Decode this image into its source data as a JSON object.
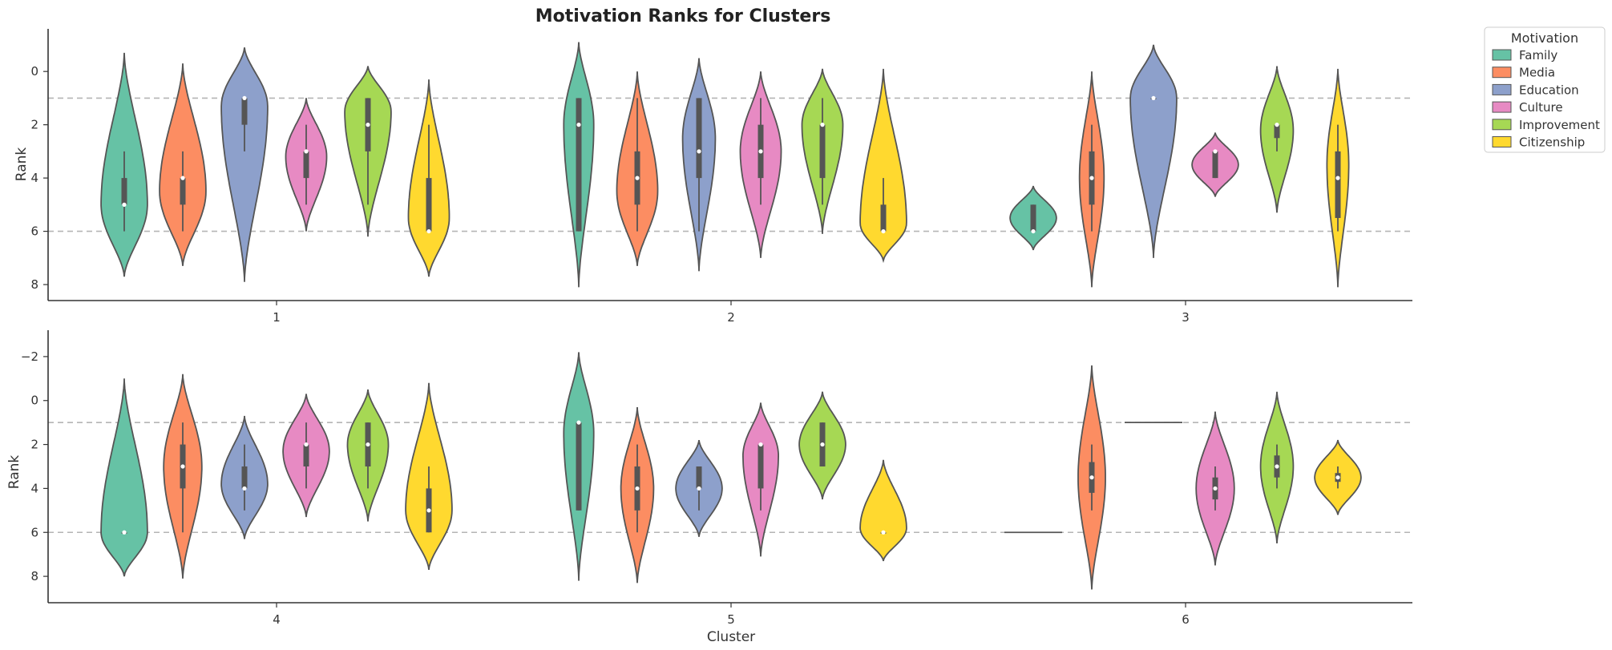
{
  "chart_data": {
    "type": "violin",
    "title": "Motivation Ranks for Clusters",
    "xlabel": "Cluster",
    "ylabel": "Rank",
    "legend": {
      "title": "Motivation",
      "placement": "outside-top-right",
      "entries": [
        {
          "name": "Family",
          "color": "#66c2a5"
        },
        {
          "name": "Media",
          "color": "#fc8d62"
        },
        {
          "name": "Education",
          "color": "#8da0cb"
        },
        {
          "name": "Culture",
          "color": "#e78ac3"
        },
        {
          "name": "Improvement",
          "color": "#a6d854"
        },
        {
          "name": "Citizenship",
          "color": "#ffd92f"
        }
      ]
    },
    "reference_lines": [
      1,
      6
    ],
    "y_inverted": true,
    "panels": [
      {
        "ylim": [
          8.6,
          -1.6
        ],
        "yticks": [
          "0",
          "2",
          "4",
          "6",
          "8"
        ],
        "ytick_values": [
          0,
          2,
          4,
          6,
          8
        ],
        "groups": [
          {
            "cluster": "1",
            "violins": [
              {
                "min": -0.7,
                "max": 7.7,
                "q1": 4,
                "median": 5,
                "q3": 5,
                "wlo": 3,
                "whi": 6,
                "mode": 5,
                "w": 0.85
              },
              {
                "min": -0.3,
                "max": 7.3,
                "q1": 4,
                "median": 4,
                "q3": 5,
                "wlo": 3,
                "whi": 6,
                "mode": 4.5,
                "w": 0.85
              },
              {
                "min": -0.9,
                "max": 7.9,
                "q1": 1,
                "median": 1,
                "q3": 2,
                "wlo": 1,
                "whi": 3,
                "mode": 1.3,
                "w": 0.85
              },
              {
                "min": 1,
                "max": 6,
                "q1": 3,
                "median": 3,
                "q3": 4,
                "wlo": 2,
                "whi": 5,
                "mode": 3.2,
                "w": 0.75
              },
              {
                "min": -0.2,
                "max": 6.2,
                "q1": 1,
                "median": 2,
                "q3": 3,
                "wlo": 1,
                "whi": 5,
                "mode": 1.5,
                "w": 0.85
              },
              {
                "min": 0.3,
                "max": 7.7,
                "q1": 4,
                "median": 6,
                "q3": 6,
                "wlo": 2,
                "whi": 6,
                "mode": 5.5,
                "w": 0.75
              }
            ]
          },
          {
            "cluster": "2",
            "violins": [
              {
                "min": -1.1,
                "max": 8.1,
                "q1": 1,
                "median": 2,
                "q3": 6,
                "wlo": 1,
                "whi": 6,
                "mode": 2,
                "w": 0.55
              },
              {
                "min": 0,
                "max": 7.3,
                "q1": 3,
                "median": 4,
                "q3": 5,
                "wlo": 1,
                "whi": 6,
                "mode": 4.5,
                "w": 0.75
              },
              {
                "min": -0.5,
                "max": 7.5,
                "q1": 1,
                "median": 3,
                "q3": 4,
                "wlo": 1,
                "whi": 6,
                "mode": 2.5,
                "w": 0.6
              },
              {
                "min": 0,
                "max": 7,
                "q1": 2,
                "median": 3,
                "q3": 4,
                "wlo": 1,
                "whi": 5,
                "mode": 3,
                "w": 0.75
              },
              {
                "min": -0.1,
                "max": 6.1,
                "q1": 2,
                "median": 2,
                "q3": 4,
                "wlo": 1,
                "whi": 5,
                "mode": 2,
                "w": 0.75
              },
              {
                "min": -0.1,
                "max": 7.1,
                "q1": 5,
                "median": 6,
                "q3": 6,
                "wlo": 4,
                "whi": 6,
                "mode": 5.7,
                "w": 0.85
              }
            ]
          },
          {
            "cluster": "3",
            "violins": [
              {
                "min": 4.3,
                "max": 6.7,
                "q1": 5,
                "median": 6,
                "q3": 6,
                "wlo": 5,
                "whi": 6,
                "mode": 5.5,
                "w": 0.85
              },
              {
                "min": 0,
                "max": 8.1,
                "q1": 3,
                "median": 4,
                "q3": 5,
                "wlo": 2,
                "whi": 6,
                "mode": 4,
                "w": 0.45
              },
              {
                "min": -1,
                "max": 7,
                "q1": 1,
                "median": 1,
                "q3": 1,
                "wlo": 1,
                "whi": 1,
                "mode": 1,
                "w": 0.85
              },
              {
                "min": 2.3,
                "max": 4.7,
                "q1": 3,
                "median": 3,
                "q3": 4,
                "wlo": 3,
                "whi": 4,
                "mode": 3.5,
                "w": 0.85
              },
              {
                "min": -0.2,
                "max": 5.3,
                "q1": 2,
                "median": 2,
                "q3": 2.5,
                "wlo": 2,
                "whi": 3,
                "mode": 2.2,
                "w": 0.6
              },
              {
                "min": -0.1,
                "max": 8.1,
                "q1": 3,
                "median": 4,
                "q3": 5.5,
                "wlo": 2,
                "whi": 6,
                "mode": 3.5,
                "w": 0.4
              }
            ]
          }
        ]
      },
      {
        "ylim": [
          9.2,
          -3.2
        ],
        "yticks": [
          "−2",
          "0",
          "2",
          "4",
          "6",
          "8"
        ],
        "ytick_values": [
          -2,
          0,
          2,
          4,
          6,
          8
        ],
        "groups": [
          {
            "cluster": "4",
            "violins": [
              {
                "min": -1,
                "max": 8,
                "q1": 6,
                "median": 6,
                "q3": 6,
                "wlo": 6,
                "whi": 6,
                "mode": 6,
                "w": 0.85
              },
              {
                "min": -1.2,
                "max": 8.1,
                "q1": 2,
                "median": 3,
                "q3": 4,
                "wlo": 1,
                "whi": 6,
                "mode": 3,
                "w": 0.7
              },
              {
                "min": 0.7,
                "max": 6.3,
                "q1": 3,
                "median": 4,
                "q3": 4,
                "wlo": 2,
                "whi": 5,
                "mode": 3.8,
                "w": 0.85
              },
              {
                "min": -0.3,
                "max": 5.3,
                "q1": 2,
                "median": 2,
                "q3": 3,
                "wlo": 1,
                "whi": 4,
                "mode": 2.3,
                "w": 0.85
              },
              {
                "min": -0.5,
                "max": 5.5,
                "q1": 1,
                "median": 2,
                "q3": 3,
                "wlo": 1,
                "whi": 4,
                "mode": 2,
                "w": 0.75
              },
              {
                "min": -0.8,
                "max": 7.7,
                "q1": 4,
                "median": 5,
                "q3": 6,
                "wlo": 3,
                "whi": 6,
                "mode": 5,
                "w": 0.85
              }
            ]
          },
          {
            "cluster": "5",
            "violins": [
              {
                "min": -2.2,
                "max": 8.2,
                "q1": 1,
                "median": 1,
                "q3": 5,
                "wlo": 1,
                "whi": 5,
                "mode": 1.5,
                "w": 0.55
              },
              {
                "min": 0.3,
                "max": 8.3,
                "q1": 3,
                "median": 4,
                "q3": 5,
                "wlo": 2,
                "whi": 6,
                "mode": 4,
                "w": 0.6
              },
              {
                "min": 1.8,
                "max": 6.2,
                "q1": 3,
                "median": 4,
                "q3": 4,
                "wlo": 3,
                "whi": 5,
                "mode": 4,
                "w": 0.85
              },
              {
                "min": 0.1,
                "max": 7.1,
                "q1": 2,
                "median": 2,
                "q3": 4,
                "wlo": 2,
                "whi": 5,
                "mode": 2.5,
                "w": 0.65
              },
              {
                "min": -0.4,
                "max": 4.5,
                "q1": 1,
                "median": 2,
                "q3": 3,
                "wlo": 1,
                "whi": 3,
                "mode": 2,
                "w": 0.85
              },
              {
                "min": 2.7,
                "max": 7.3,
                "q1": 6,
                "median": 6,
                "q3": 6,
                "wlo": 6,
                "whi": 6,
                "mode": 5.8,
                "w": 0.85
              }
            ]
          },
          {
            "cluster": "6",
            "violins": [
              {
                "flat": true,
                "value": 6,
                "w": 0.85
              },
              {
                "min": -1.6,
                "max": 8.6,
                "q1": 2.8,
                "median": 3.5,
                "q3": 4.2,
                "wlo": 2,
                "whi": 5,
                "mode": 3.5,
                "w": 0.5
              },
              {
                "flat": true,
                "value": 1,
                "w": 0.85
              },
              {
                "min": 0.5,
                "max": 7.5,
                "q1": 3.5,
                "median": 4,
                "q3": 4.5,
                "wlo": 3,
                "whi": 5,
                "mode": 4,
                "w": 0.7
              },
              {
                "min": -0.4,
                "max": 6.5,
                "q1": 2.5,
                "median": 3,
                "q3": 3.5,
                "wlo": 2,
                "whi": 4,
                "mode": 3,
                "w": 0.6
              },
              {
                "min": 1.8,
                "max": 5.2,
                "q1": 3.3,
                "median": 3.5,
                "q3": 3.7,
                "wlo": 3,
                "whi": 4,
                "mode": 3.5,
                "w": 0.85
              }
            ]
          }
        ]
      }
    ]
  }
}
